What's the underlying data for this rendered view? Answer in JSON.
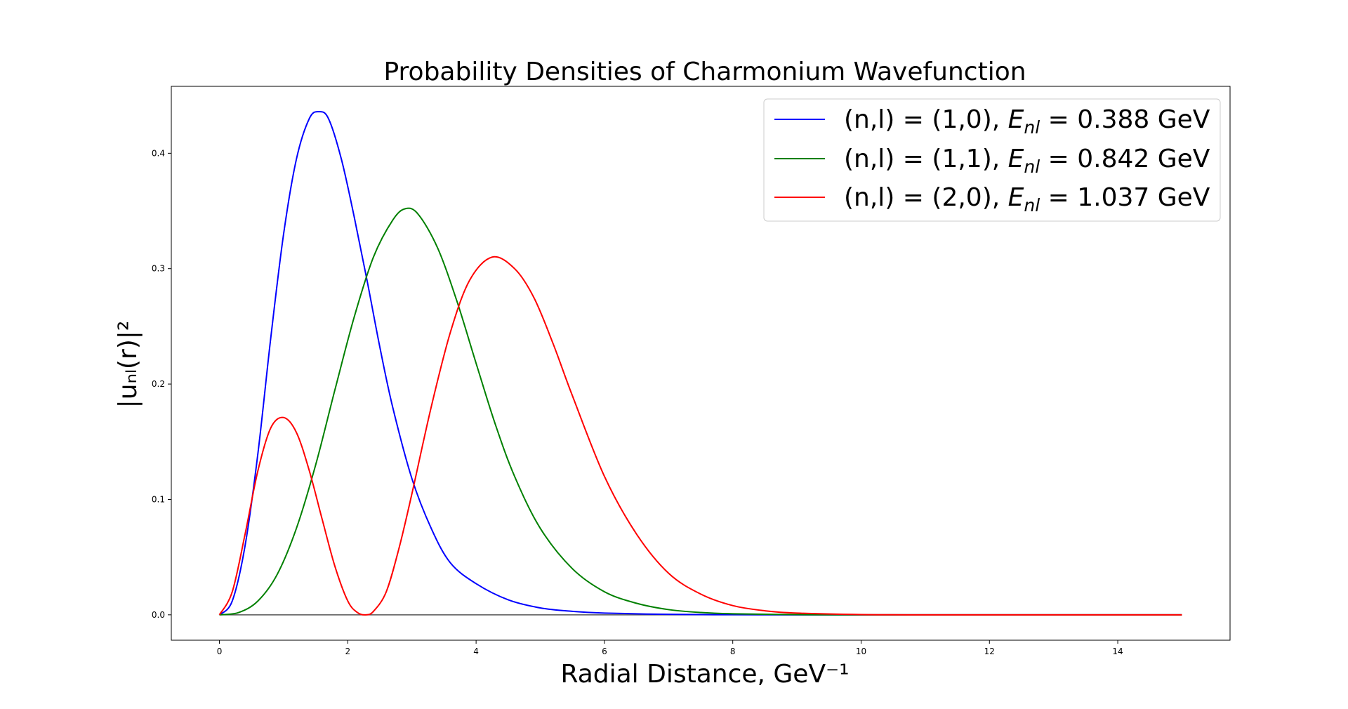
{
  "chart_data": {
    "type": "line",
    "title": "Probability Densities of Charmonium Wavefunction",
    "xlabel": "Radial Distance, GeV⁻¹",
    "ylabel": "|uₙₗ(r)|²",
    "xlim": [
      -0.75,
      15.75
    ],
    "ylim": [
      -0.022,
      0.458
    ],
    "xticks": [
      0,
      2,
      4,
      6,
      8,
      10,
      12,
      14
    ],
    "yticks": [
      0.0,
      0.1,
      0.2,
      0.3,
      0.4
    ],
    "xtick_labels": [
      "0",
      "2",
      "4",
      "6",
      "8",
      "10",
      "12",
      "14"
    ],
    "ytick_labels": [
      "0.0",
      "0.1",
      "0.2",
      "0.3",
      "0.4"
    ],
    "legend_position": "top-right",
    "grid": false,
    "baseline": {
      "y": 0,
      "x_range": [
        0,
        15
      ],
      "color": "#555555"
    },
    "series": [
      {
        "name": "(n,l) = (1,0), E_nl = 0.388 GeV",
        "legend_prefix": "(n,l) = (1,0), ",
        "legend_energy": "0.388 GeV",
        "color": "#0000ff",
        "x": [
          0,
          0.2,
          0.4,
          0.6,
          0.8,
          1.0,
          1.2,
          1.4,
          1.55,
          1.7,
          1.9,
          2.1,
          2.3,
          2.5,
          2.7,
          3.0,
          3.3,
          3.6,
          4.0,
          4.5,
          5.0,
          5.5,
          6.0,
          7.0,
          8.0,
          9.0,
          10.0,
          12.0,
          15.0
        ],
        "y": [
          0,
          0.012,
          0.06,
          0.14,
          0.24,
          0.33,
          0.395,
          0.43,
          0.436,
          0.43,
          0.395,
          0.345,
          0.29,
          0.232,
          0.18,
          0.118,
          0.075,
          0.045,
          0.027,
          0.013,
          0.006,
          0.003,
          0.0015,
          0.0004,
          0.0001,
          0,
          0,
          0,
          0
        ]
      },
      {
        "name": "(n,l) = (1,1), E_nl = 0.842 GeV",
        "legend_prefix": "(n,l) = (1,1), ",
        "legend_energy": "0.842 GeV",
        "color": "#008000",
        "x": [
          0,
          0.3,
          0.6,
          0.9,
          1.2,
          1.5,
          1.8,
          2.1,
          2.4,
          2.7,
          2.9,
          3.1,
          3.4,
          3.7,
          4.0,
          4.3,
          4.6,
          5.0,
          5.5,
          6.0,
          6.5,
          7.0,
          7.5,
          8.0,
          9.0,
          10.0,
          12.0,
          15.0
        ],
        "y": [
          0,
          0.002,
          0.012,
          0.035,
          0.075,
          0.13,
          0.195,
          0.258,
          0.31,
          0.342,
          0.352,
          0.347,
          0.318,
          0.272,
          0.218,
          0.165,
          0.12,
          0.075,
          0.04,
          0.02,
          0.01,
          0.0045,
          0.002,
          0.0009,
          0.0002,
          0,
          0,
          0
        ]
      },
      {
        "name": "(n,l) = (2,0), E_nl = 1.037 GeV",
        "legend_prefix": "(n,l) = (2,0), ",
        "legend_energy": "1.037 GeV",
        "color": "#ff0000",
        "x": [
          0,
          0.2,
          0.4,
          0.6,
          0.8,
          1.0,
          1.2,
          1.4,
          1.6,
          1.8,
          2.0,
          2.15,
          2.28,
          2.4,
          2.6,
          2.8,
          3.0,
          3.3,
          3.6,
          3.9,
          4.25,
          4.6,
          4.9,
          5.2,
          5.5,
          6.0,
          6.5,
          7.0,
          7.5,
          8.0,
          8.5,
          9.0,
          10.0,
          11.0,
          12.0,
          15.0
        ],
        "y": [
          0,
          0.02,
          0.07,
          0.125,
          0.162,
          0.171,
          0.158,
          0.125,
          0.083,
          0.042,
          0.012,
          0.002,
          0,
          0.003,
          0.02,
          0.058,
          0.105,
          0.18,
          0.245,
          0.29,
          0.31,
          0.3,
          0.275,
          0.235,
          0.19,
          0.12,
          0.07,
          0.036,
          0.018,
          0.008,
          0.0035,
          0.0015,
          0.0002,
          0,
          0,
          0
        ]
      }
    ]
  }
}
